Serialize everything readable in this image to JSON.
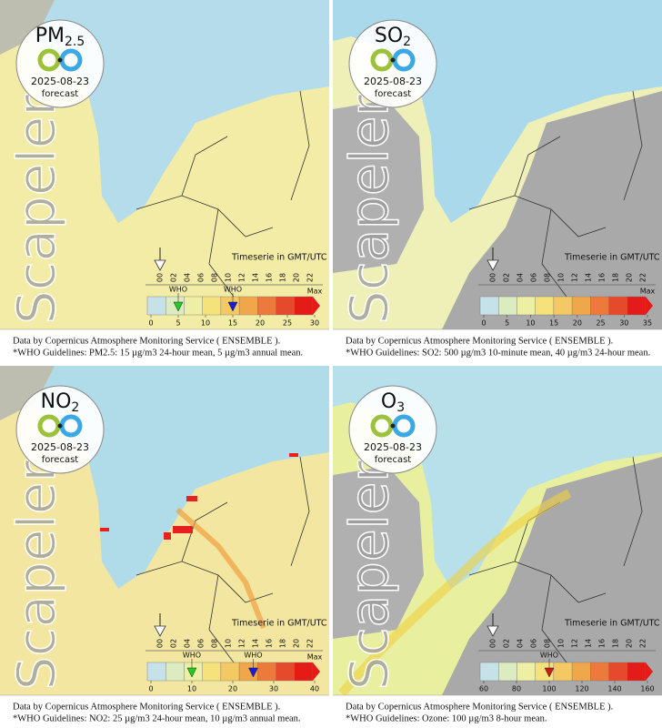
{
  "panels": [
    {
      "pollutant": "PM",
      "subscript": "2.5",
      "date": "2025-08-23",
      "label": "forecast",
      "watermark": "Scapeler",
      "timeserie": "Timeserie in GMT/UTC",
      "hours": [
        "00",
        "02",
        "04",
        "06",
        "08",
        "10",
        "12",
        "14",
        "16",
        "18",
        "20",
        "22"
      ],
      "scale_ticks": [
        0,
        5,
        10,
        15,
        20,
        25,
        30
      ],
      "max_label": "Max",
      "who_markers": [
        {
          "label": "WHO",
          "value": 5,
          "color": "#22cc22"
        },
        {
          "label": "WHO",
          "value": 15,
          "color": "#1a1adb"
        }
      ],
      "footer": [
        "Data by Copernicus Atmosphere Monitoring Service ( ENSEMBLE ).",
        "*WHO Guidelines: PM2.5: 15 µg/m3 24-hour mean, 5 µg/m3 annual mean."
      ]
    },
    {
      "pollutant": "SO",
      "subscript": "2",
      "date": "2025-08-23",
      "label": "forecast",
      "watermark": "Scapeler",
      "timeserie": "Timeserie in GMT/UTC",
      "hours": [
        "00",
        "02",
        "04",
        "06",
        "08",
        "10",
        "12",
        "14",
        "16",
        "18",
        "20",
        "22"
      ],
      "scale_ticks": [
        0,
        5,
        10,
        15,
        20,
        25,
        30,
        35
      ],
      "max_label": "Max",
      "who_markers": [],
      "footer": [
        "Data by Copernicus Atmosphere Monitoring Service ( ENSEMBLE ).",
        "*WHO Guidelines: SO2: 500 µg/m3 10-minute mean, 40 µg/m3 24-hour mean."
      ]
    },
    {
      "pollutant": "NO",
      "subscript": "2",
      "date": "2025-08-23",
      "label": "forecast",
      "watermark": "Scapeler",
      "timeserie": "Timeserie in GMT/UTC",
      "hours": [
        "00",
        "02",
        "04",
        "06",
        "08",
        "10",
        "12",
        "14",
        "16",
        "18",
        "20",
        "22"
      ],
      "scale_ticks": [
        0,
        10,
        20,
        30,
        40
      ],
      "max_label": "Max",
      "who_markers": [
        {
          "label": "WHO",
          "value": 10,
          "color": "#22cc22"
        },
        {
          "label": "WHO",
          "value": 25,
          "color": "#1a1adb"
        }
      ],
      "footer": [
        "Data by Copernicus Atmosphere Monitoring Service ( ENSEMBLE ).",
        "*WHO Guidelines: NO2: 25 µg/m3 24-hour mean, 10 µg/m3 annual mean."
      ]
    },
    {
      "pollutant": "O",
      "subscript": "3",
      "date": "2025-08-23",
      "label": "forecast",
      "watermark": "Scapeler",
      "timeserie": "Timeserie in GMT/UTC",
      "hours": [
        "00",
        "02",
        "04",
        "06",
        "08",
        "10",
        "12",
        "14",
        "16",
        "18",
        "20",
        "22"
      ],
      "scale_ticks": [
        60,
        80,
        100,
        120,
        140,
        160
      ],
      "max_label": null,
      "who_markers": [
        {
          "label": "WHO",
          "value": 100,
          "color": "#cc1a1a"
        }
      ],
      "footer": [
        "Data by Copernicus Atmosphere Monitoring Service ( ENSEMBLE ).",
        "*WHO Guidelines: Ozone: 100 µg/m3 8-hour mean."
      ]
    }
  ]
}
